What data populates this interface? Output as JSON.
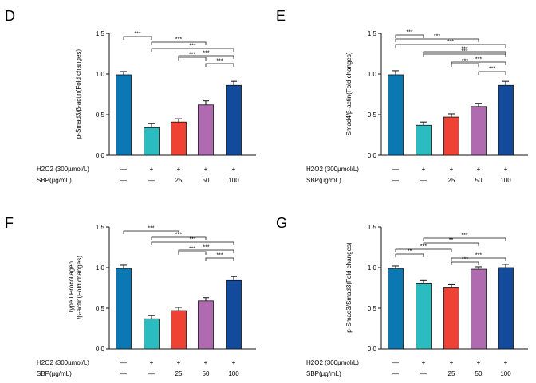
{
  "colors": [
    "#0b78b4",
    "#2bbcc0",
    "#ef4234",
    "#b06ab0",
    "#124a9c"
  ],
  "treatment_rows": [
    {
      "label": "H2O2 (300µmol/L)",
      "values": [
        "—",
        "+",
        "+",
        "+",
        "+"
      ]
    },
    {
      "label": "SBP(µg/mL)",
      "values": [
        "—",
        "—",
        "25",
        "50",
        "100"
      ]
    }
  ],
  "chart_data": [
    {
      "type": "bar",
      "panel": "D",
      "ylabel": "p-Smad3/β-actin(Fold changes)",
      "ylim": [
        0,
        1.5
      ],
      "yticks": [
        "0.0",
        "0.5",
        "1.0",
        "1.5"
      ],
      "values": [
        0.99,
        0.34,
        0.41,
        0.62,
        0.86
      ],
      "errors": [
        0.04,
        0.05,
        0.04,
        0.05,
        0.05
      ],
      "significance": [
        {
          "from": 0,
          "to": 1,
          "label": "***"
        },
        {
          "from": 1,
          "to": 3,
          "label": "***"
        },
        {
          "from": 1,
          "to": 4,
          "label": "***"
        },
        {
          "from": 2,
          "to": 4,
          "label": "***"
        },
        {
          "from": 2,
          "to": 3,
          "label": "***"
        },
        {
          "from": 3,
          "to": 4,
          "label": "***"
        }
      ]
    },
    {
      "type": "bar",
      "panel": "E",
      "ylabel": "Smad4/β-actin(Fold changes)",
      "ylim": [
        0,
        1.5
      ],
      "yticks": [
        "0.0",
        "0.5",
        "1.0",
        "1.5"
      ],
      "values": [
        0.99,
        0.37,
        0.47,
        0.6,
        0.86
      ],
      "errors": [
        0.05,
        0.04,
        0.04,
        0.04,
        0.05
      ],
      "significance": [
        {
          "from": 0,
          "to": 1,
          "label": "***"
        },
        {
          "from": 0,
          "to": 3,
          "label": "***"
        },
        {
          "from": 0,
          "to": 4,
          "label": "***"
        },
        {
          "from": 1,
          "to": 4,
          "label": "***"
        },
        {
          "from": 1,
          "to": 4,
          "label": "***"
        },
        {
          "from": 2,
          "to": 4,
          "label": "***"
        },
        {
          "from": 2,
          "to": 3,
          "label": "***"
        },
        {
          "from": 3,
          "to": 4,
          "label": "***"
        }
      ]
    },
    {
      "type": "bar",
      "panel": "F",
      "ylabel": "Type I Procollagen",
      "ylabel2": "/β-actin(Fold changes)",
      "ylim": [
        0,
        1.5
      ],
      "yticks": [
        "0.0",
        "0.5",
        "1.0",
        "1.5"
      ],
      "values": [
        0.99,
        0.37,
        0.47,
        0.59,
        0.84
      ],
      "errors": [
        0.04,
        0.04,
        0.04,
        0.04,
        0.05
      ],
      "significance": [
        {
          "from": 0,
          "to": 2,
          "label": "***"
        },
        {
          "from": 1,
          "to": 3,
          "label": "***"
        },
        {
          "from": 1,
          "to": 4,
          "label": "***"
        },
        {
          "from": 2,
          "to": 4,
          "label": "***"
        },
        {
          "from": 2,
          "to": 3,
          "label": "***"
        },
        {
          "from": 3,
          "to": 4,
          "label": "***"
        }
      ]
    },
    {
      "type": "bar",
      "panel": "G",
      "ylabel": "p-Smad3/Smad3(Fold changes)",
      "ylim": [
        0,
        1.5
      ],
      "yticks": [
        "0.0",
        "0.5",
        "1.0",
        "1.5"
      ],
      "values": [
        0.99,
        0.8,
        0.75,
        0.98,
        1.0
      ],
      "errors": [
        0.03,
        0.04,
        0.04,
        0.03,
        0.04
      ],
      "significance": [
        {
          "from": 1,
          "to": 4,
          "label": "***"
        },
        {
          "from": 1,
          "to": 3,
          "label": "**"
        },
        {
          "from": 0,
          "to": 2,
          "label": "***"
        },
        {
          "from": 0,
          "to": 1,
          "label": "**"
        },
        {
          "from": 2,
          "to": 4,
          "label": "***"
        },
        {
          "from": 2,
          "to": 3,
          "label": "***"
        }
      ]
    }
  ]
}
